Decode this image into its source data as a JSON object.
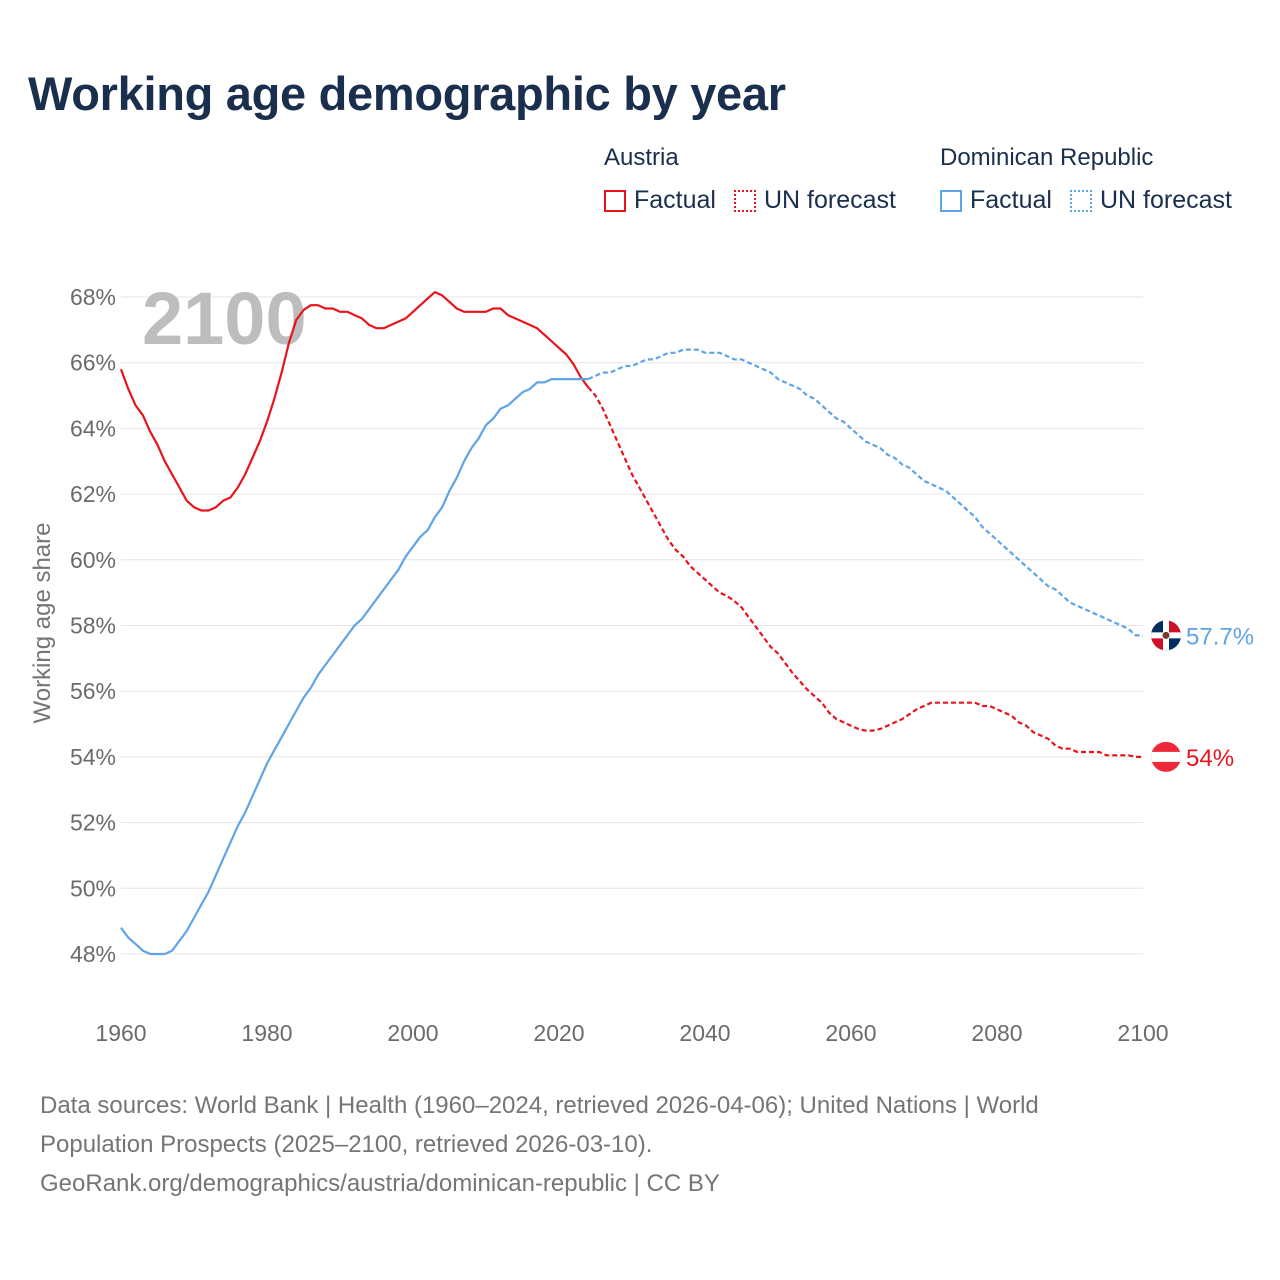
{
  "title": "Working age demographic by year",
  "legend": [
    {
      "group": "Austria",
      "items": [
        {
          "label": "Factual",
          "style": "solid"
        },
        {
          "label": "UN forecast",
          "style": "dotted"
        }
      ],
      "color": "#e8141c"
    },
    {
      "group": "Dominican Republic",
      "items": [
        {
          "label": "Factual",
          "style": "solid"
        },
        {
          "label": "UN forecast",
          "style": "dotted"
        }
      ],
      "color": "#5ea4e6"
    }
  ],
  "sources": {
    "line1": "Data sources: World Bank | Health (1960–2024, retrieved 2026-04-06); United Nations | World",
    "line2": "Population Prospects (2025–2100, retrieved 2026-03-10).",
    "line3": "GeoRank.org/demographics/austria/dominican-republic | CC BY"
  },
  "chart_data": {
    "type": "line",
    "title": "Working age demographic by year",
    "ylabel": "Working age share",
    "xlabel": "",
    "year_watermark": "2100",
    "xlim": [
      1960,
      2100
    ],
    "ylim": [
      47,
      69
    ],
    "x_ticks": [
      1960,
      1980,
      2000,
      2020,
      2040,
      2060,
      2080,
      2100
    ],
    "y_ticks": [
      48,
      50,
      52,
      54,
      56,
      58,
      60,
      62,
      64,
      66,
      68
    ],
    "grid": true,
    "factual_until": 2024,
    "series": [
      {
        "name": "Austria",
        "color": "#e8141c",
        "end_label": "54%",
        "flag": "austria-flag",
        "points": [
          [
            1960,
            65.8
          ],
          [
            1961,
            65.2
          ],
          [
            1962,
            64.7
          ],
          [
            1963,
            64.4
          ],
          [
            1964,
            63.9
          ],
          [
            1965,
            63.5
          ],
          [
            1966,
            63.0
          ],
          [
            1967,
            62.6
          ],
          [
            1968,
            62.2
          ],
          [
            1969,
            61.8
          ],
          [
            1970,
            61.6
          ],
          [
            1971,
            61.5
          ],
          [
            1972,
            61.5
          ],
          [
            1973,
            61.6
          ],
          [
            1974,
            61.8
          ],
          [
            1975,
            61.9
          ],
          [
            1976,
            62.2
          ],
          [
            1977,
            62.6
          ],
          [
            1978,
            63.1
          ],
          [
            1979,
            63.6
          ],
          [
            1980,
            64.2
          ],
          [
            1981,
            64.9
          ],
          [
            1982,
            65.7
          ],
          [
            1983,
            66.6
          ],
          [
            1984,
            67.3
          ],
          [
            1985,
            67.6
          ],
          [
            1986,
            67.75
          ],
          [
            1987,
            67.75
          ],
          [
            1988,
            67.65
          ],
          [
            1989,
            67.65
          ],
          [
            1990,
            67.55
          ],
          [
            1991,
            67.55
          ],
          [
            1992,
            67.45
          ],
          [
            1993,
            67.35
          ],
          [
            1994,
            67.15
          ],
          [
            1995,
            67.05
          ],
          [
            1996,
            67.05
          ],
          [
            1997,
            67.15
          ],
          [
            1998,
            67.25
          ],
          [
            1999,
            67.35
          ],
          [
            2000,
            67.55
          ],
          [
            2001,
            67.75
          ],
          [
            2002,
            67.95
          ],
          [
            2003,
            68.15
          ],
          [
            2004,
            68.05
          ],
          [
            2005,
            67.85
          ],
          [
            2006,
            67.65
          ],
          [
            2007,
            67.55
          ],
          [
            2008,
            67.55
          ],
          [
            2009,
            67.55
          ],
          [
            2010,
            67.55
          ],
          [
            2011,
            67.65
          ],
          [
            2012,
            67.65
          ],
          [
            2013,
            67.45
          ],
          [
            2014,
            67.35
          ],
          [
            2015,
            67.25
          ],
          [
            2016,
            67.15
          ],
          [
            2017,
            67.05
          ],
          [
            2018,
            66.85
          ],
          [
            2019,
            66.65
          ],
          [
            2020,
            66.45
          ],
          [
            2021,
            66.25
          ],
          [
            2022,
            65.95
          ],
          [
            2023,
            65.55
          ],
          [
            2024,
            65.25
          ],
          [
            2025,
            65.0
          ],
          [
            2026,
            64.6
          ],
          [
            2027,
            64.1
          ],
          [
            2028,
            63.6
          ],
          [
            2029,
            63.1
          ],
          [
            2030,
            62.6
          ],
          [
            2031,
            62.2
          ],
          [
            2032,
            61.8
          ],
          [
            2033,
            61.4
          ],
          [
            2034,
            61.0
          ],
          [
            2035,
            60.6
          ],
          [
            2036,
            60.3
          ],
          [
            2037,
            60.1
          ],
          [
            2038,
            59.8
          ],
          [
            2039,
            59.6
          ],
          [
            2040,
            59.4
          ],
          [
            2041,
            59.2
          ],
          [
            2042,
            59.0
          ],
          [
            2043,
            58.9
          ],
          [
            2044,
            58.75
          ],
          [
            2045,
            58.55
          ],
          [
            2046,
            58.25
          ],
          [
            2047,
            57.95
          ],
          [
            2048,
            57.65
          ],
          [
            2049,
            57.35
          ],
          [
            2050,
            57.15
          ],
          [
            2051,
            56.85
          ],
          [
            2052,
            56.55
          ],
          [
            2053,
            56.3
          ],
          [
            2054,
            56.05
          ],
          [
            2055,
            55.85
          ],
          [
            2056,
            55.65
          ],
          [
            2057,
            55.35
          ],
          [
            2058,
            55.15
          ],
          [
            2059,
            55.05
          ],
          [
            2060,
            54.95
          ],
          [
            2061,
            54.85
          ],
          [
            2062,
            54.8
          ],
          [
            2063,
            54.8
          ],
          [
            2064,
            54.85
          ],
          [
            2065,
            54.95
          ],
          [
            2066,
            55.05
          ],
          [
            2067,
            55.15
          ],
          [
            2068,
            55.3
          ],
          [
            2069,
            55.45
          ],
          [
            2070,
            55.55
          ],
          [
            2071,
            55.65
          ],
          [
            2072,
            55.65
          ],
          [
            2073,
            55.65
          ],
          [
            2074,
            55.65
          ],
          [
            2075,
            55.65
          ],
          [
            2076,
            55.65
          ],
          [
            2077,
            55.65
          ],
          [
            2078,
            55.55
          ],
          [
            2079,
            55.55
          ],
          [
            2080,
            55.45
          ],
          [
            2081,
            55.35
          ],
          [
            2082,
            55.25
          ],
          [
            2083,
            55.05
          ],
          [
            2084,
            54.95
          ],
          [
            2085,
            54.75
          ],
          [
            2086,
            54.65
          ],
          [
            2087,
            54.55
          ],
          [
            2088,
            54.35
          ],
          [
            2089,
            54.25
          ],
          [
            2090,
            54.25
          ],
          [
            2091,
            54.15
          ],
          [
            2092,
            54.15
          ],
          [
            2093,
            54.15
          ],
          [
            2094,
            54.15
          ],
          [
            2095,
            54.05
          ],
          [
            2096,
            54.05
          ],
          [
            2097,
            54.05
          ],
          [
            2098,
            54.05
          ],
          [
            2099,
            54.0
          ],
          [
            2100,
            54.0
          ]
        ]
      },
      {
        "name": "Dominican Republic",
        "color": "#5ea4e6",
        "end_label": "57.7%",
        "flag": "dominican-republic-flag",
        "points": [
          [
            1960,
            48.8
          ],
          [
            1961,
            48.5
          ],
          [
            1962,
            48.3
          ],
          [
            1963,
            48.1
          ],
          [
            1964,
            48.0
          ],
          [
            1965,
            48.0
          ],
          [
            1966,
            48.0
          ],
          [
            1967,
            48.1
          ],
          [
            1968,
            48.4
          ],
          [
            1969,
            48.7
          ],
          [
            1970,
            49.1
          ],
          [
            1971,
            49.5
          ],
          [
            1972,
            49.9
          ],
          [
            1973,
            50.4
          ],
          [
            1974,
            50.9
          ],
          [
            1975,
            51.4
          ],
          [
            1976,
            51.9
          ],
          [
            1977,
            52.3
          ],
          [
            1978,
            52.8
          ],
          [
            1979,
            53.3
          ],
          [
            1980,
            53.8
          ],
          [
            1981,
            54.2
          ],
          [
            1982,
            54.6
          ],
          [
            1983,
            55.0
          ],
          [
            1984,
            55.4
          ],
          [
            1985,
            55.8
          ],
          [
            1986,
            56.1
          ],
          [
            1987,
            56.5
          ],
          [
            1988,
            56.8
          ],
          [
            1989,
            57.1
          ],
          [
            1990,
            57.4
          ],
          [
            1991,
            57.7
          ],
          [
            1992,
            58.0
          ],
          [
            1993,
            58.2
          ],
          [
            1994,
            58.5
          ],
          [
            1995,
            58.8
          ],
          [
            1996,
            59.1
          ],
          [
            1997,
            59.4
          ],
          [
            1998,
            59.7
          ],
          [
            1999,
            60.1
          ],
          [
            2000,
            60.4
          ],
          [
            2001,
            60.7
          ],
          [
            2002,
            60.9
          ],
          [
            2003,
            61.3
          ],
          [
            2004,
            61.6
          ],
          [
            2005,
            62.1
          ],
          [
            2006,
            62.5
          ],
          [
            2007,
            63.0
          ],
          [
            2008,
            63.4
          ],
          [
            2009,
            63.7
          ],
          [
            2010,
            64.1
          ],
          [
            2011,
            64.3
          ],
          [
            2012,
            64.6
          ],
          [
            2013,
            64.7
          ],
          [
            2014,
            64.9
          ],
          [
            2015,
            65.1
          ],
          [
            2016,
            65.2
          ],
          [
            2017,
            65.4
          ],
          [
            2018,
            65.4
          ],
          [
            2019,
            65.5
          ],
          [
            2020,
            65.5
          ],
          [
            2021,
            65.5
          ],
          [
            2022,
            65.5
          ],
          [
            2023,
            65.5
          ],
          [
            2024,
            65.5
          ],
          [
            2025,
            65.6
          ],
          [
            2026,
            65.7
          ],
          [
            2027,
            65.7
          ],
          [
            2028,
            65.8
          ],
          [
            2029,
            65.9
          ],
          [
            2030,
            65.9
          ],
          [
            2031,
            66.0
          ],
          [
            2032,
            66.1
          ],
          [
            2033,
            66.1
          ],
          [
            2034,
            66.2
          ],
          [
            2035,
            66.3
          ],
          [
            2036,
            66.3
          ],
          [
            2037,
            66.4
          ],
          [
            2038,
            66.4
          ],
          [
            2039,
            66.4
          ],
          [
            2040,
            66.3
          ],
          [
            2041,
            66.3
          ],
          [
            2042,
            66.3
          ],
          [
            2043,
            66.2
          ],
          [
            2044,
            66.1
          ],
          [
            2045,
            66.1
          ],
          [
            2046,
            66.0
          ],
          [
            2047,
            65.9
          ],
          [
            2048,
            65.8
          ],
          [
            2049,
            65.7
          ],
          [
            2050,
            65.5
          ],
          [
            2051,
            65.4
          ],
          [
            2052,
            65.3
          ],
          [
            2053,
            65.2
          ],
          [
            2054,
            65.0
          ],
          [
            2055,
            64.9
          ],
          [
            2056,
            64.7
          ],
          [
            2057,
            64.5
          ],
          [
            2058,
            64.3
          ],
          [
            2059,
            64.2
          ],
          [
            2060,
            64.0
          ],
          [
            2061,
            63.8
          ],
          [
            2062,
            63.6
          ],
          [
            2063,
            63.5
          ],
          [
            2064,
            63.4
          ],
          [
            2065,
            63.2
          ],
          [
            2066,
            63.1
          ],
          [
            2067,
            62.9
          ],
          [
            2068,
            62.8
          ],
          [
            2069,
            62.6
          ],
          [
            2070,
            62.4
          ],
          [
            2071,
            62.3
          ],
          [
            2072,
            62.2
          ],
          [
            2073,
            62.1
          ],
          [
            2074,
            61.9
          ],
          [
            2075,
            61.7
          ],
          [
            2076,
            61.5
          ],
          [
            2077,
            61.3
          ],
          [
            2078,
            61.0
          ],
          [
            2079,
            60.8
          ],
          [
            2080,
            60.6
          ],
          [
            2081,
            60.4
          ],
          [
            2082,
            60.2
          ],
          [
            2083,
            60.0
          ],
          [
            2084,
            59.8
          ],
          [
            2085,
            59.6
          ],
          [
            2086,
            59.4
          ],
          [
            2087,
            59.2
          ],
          [
            2088,
            59.1
          ],
          [
            2089,
            58.9
          ],
          [
            2090,
            58.7
          ],
          [
            2091,
            58.6
          ],
          [
            2092,
            58.5
          ],
          [
            2093,
            58.4
          ],
          [
            2094,
            58.3
          ],
          [
            2095,
            58.2
          ],
          [
            2096,
            58.1
          ],
          [
            2097,
            58.0
          ],
          [
            2098,
            57.9
          ],
          [
            2099,
            57.7
          ],
          [
            2100,
            57.7
          ]
        ]
      }
    ]
  }
}
